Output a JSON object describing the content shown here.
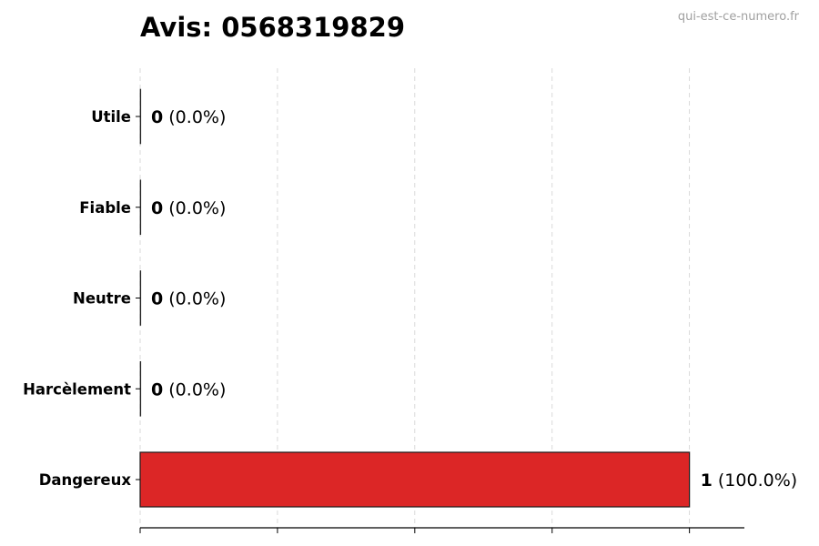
{
  "chart_data": {
    "type": "bar",
    "orientation": "horizontal",
    "title": "Avis: 0568319829",
    "watermark": "qui-est-ce-numero.fr",
    "categories": [
      "Utile",
      "Fiable",
      "Neutre",
      "Harcèlement",
      "Dangereux"
    ],
    "values": [
      0,
      0,
      0,
      0,
      1
    ],
    "value_labels": [
      "0",
      "0",
      "0",
      "0",
      "1"
    ],
    "percent_labels": [
      "(0.0%)",
      "(0.0%)",
      "(0.0%)",
      "(0.0%)",
      "(100.0%)"
    ],
    "xlim": [
      0,
      1.1
    ],
    "xticks": [
      0,
      0.25,
      0.5,
      0.75,
      1.0
    ],
    "xtick_labels_shown": false,
    "grid": "vertical-dashed",
    "bar_color": "#dc2626",
    "edge_color": "#1a1a1a"
  }
}
